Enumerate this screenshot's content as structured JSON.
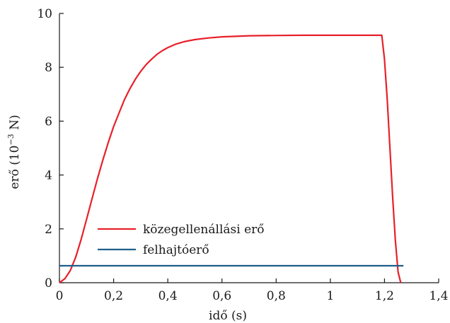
{
  "chart_data": {
    "type": "line",
    "title": "",
    "xlabel": "idő (s)",
    "ylabel_main": "erő (10",
    "ylabel_exponent": "−3",
    "ylabel_unit": " N)",
    "xlim": [
      0,
      1.4
    ],
    "ylim": [
      0,
      10
    ],
    "x_ticks": [
      {
        "value": 0,
        "label": "0"
      },
      {
        "value": 0.2,
        "label": "0,2"
      },
      {
        "value": 0.4,
        "label": "0,4"
      },
      {
        "value": 0.6,
        "label": "0,6"
      },
      {
        "value": 0.8,
        "label": "0,8"
      },
      {
        "value": 1.0,
        "label": "1"
      },
      {
        "value": 1.2,
        "label": "1,2"
      },
      {
        "value": 1.4,
        "label": "1,4"
      }
    ],
    "y_ticks": [
      {
        "value": 0,
        "label": "0"
      },
      {
        "value": 2,
        "label": "2"
      },
      {
        "value": 4,
        "label": "4"
      },
      {
        "value": 6,
        "label": "6"
      },
      {
        "value": 8,
        "label": "8"
      },
      {
        "value": 10,
        "label": "10"
      }
    ],
    "grid": false,
    "legend_position": "lower-left",
    "series": [
      {
        "name": "közegellenállási erő",
        "color": "#e8202a",
        "x": [
          0,
          0.02,
          0.04,
          0.06,
          0.08,
          0.1,
          0.12,
          0.14,
          0.16,
          0.18,
          0.2,
          0.22,
          0.24,
          0.26,
          0.28,
          0.3,
          0.32,
          0.34,
          0.36,
          0.38,
          0.4,
          0.43,
          0.46,
          0.5,
          0.55,
          0.6,
          0.65,
          0.7,
          0.8,
          0.9,
          1.0,
          1.1,
          1.19,
          1.2,
          1.21,
          1.22,
          1.23,
          1.24,
          1.25,
          1.26
        ],
        "y": [
          0,
          0.15,
          0.45,
          0.95,
          1.6,
          2.35,
          3.1,
          3.85,
          4.55,
          5.2,
          5.8,
          6.3,
          6.8,
          7.2,
          7.55,
          7.85,
          8.1,
          8.3,
          8.48,
          8.62,
          8.73,
          8.86,
          8.95,
          9.03,
          9.09,
          9.13,
          9.15,
          9.17,
          9.18,
          9.19,
          9.19,
          9.19,
          9.19,
          8.3,
          6.8,
          5.0,
          3.2,
          1.6,
          0.4,
          0
        ]
      },
      {
        "name": "felhajtóerő",
        "color": "#1f5f8b",
        "x": [
          0,
          1.27
        ],
        "y": [
          0.63,
          0.63
        ]
      }
    ]
  }
}
